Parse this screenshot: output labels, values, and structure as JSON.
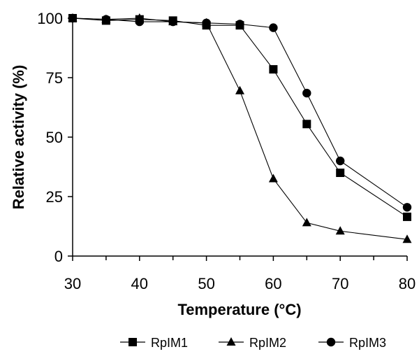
{
  "chart_data": {
    "type": "line",
    "title": "",
    "xlabel": "Temperature (°C)",
    "ylabel": "Relative activity (%)",
    "xlim": [
      30,
      80
    ],
    "ylim": [
      0,
      100
    ],
    "xticks": [
      30,
      40,
      50,
      60,
      70,
      80
    ],
    "xtick_labels": [
      "30",
      "40",
      "50",
      "60",
      "70",
      "80"
    ],
    "yticks": [
      0,
      25,
      50,
      75,
      100
    ],
    "ytick_labels": [
      "0",
      "25",
      "50",
      "75",
      "100"
    ],
    "x_minor_ticks": [
      35,
      45,
      55,
      65,
      75
    ],
    "grid": false,
    "legend_position": "bottom",
    "series": [
      {
        "name": "RpIM1",
        "marker": "square",
        "x": [
          30,
          35,
          40,
          45,
          50,
          55,
          60,
          65,
          70,
          80
        ],
        "y": [
          100,
          99,
          99.5,
          99,
          97,
          97,
          78.5,
          55.5,
          35,
          16.5
        ]
      },
      {
        "name": "RpIM2",
        "marker": "triangle",
        "x": [
          30,
          35,
          40,
          45,
          50,
          55,
          60,
          65,
          70,
          80
        ],
        "y": [
          100,
          99.5,
          100,
          98.5,
          98,
          69.5,
          32.5,
          14,
          10.5,
          7
        ]
      },
      {
        "name": "RpIM3",
        "marker": "circle",
        "x": [
          30,
          35,
          40,
          45,
          50,
          55,
          60,
          65,
          70,
          80
        ],
        "y": [
          100,
          99.5,
          98.5,
          98.5,
          98,
          97.5,
          96,
          68.5,
          40,
          20.5
        ]
      }
    ]
  }
}
